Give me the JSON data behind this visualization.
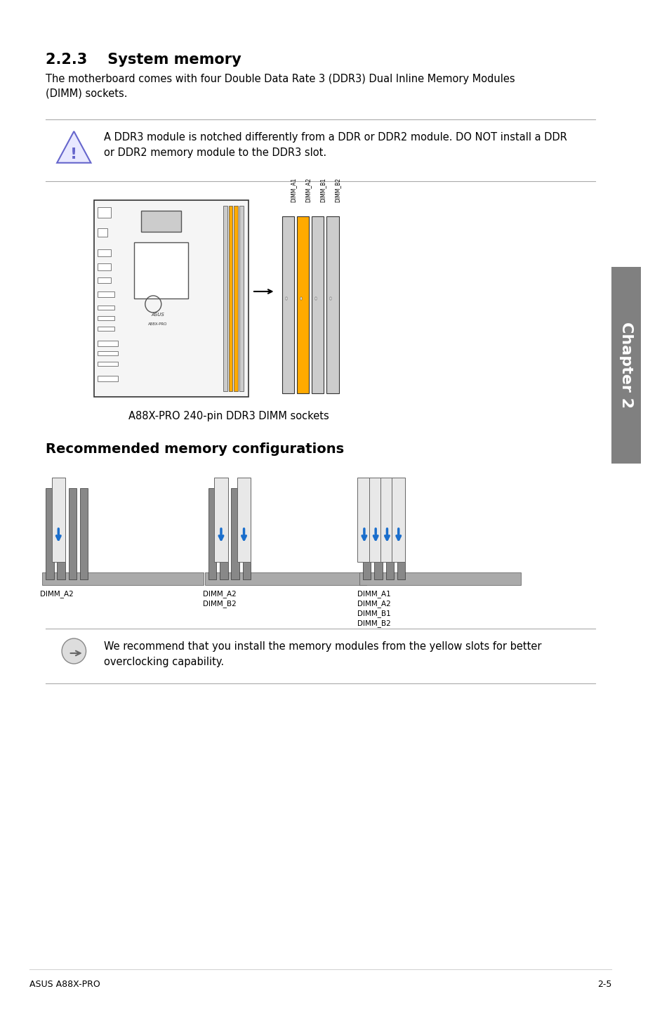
{
  "title": "2.2.3    System memory",
  "body_text": "The motherboard comes with four Double Data Rate 3 (DDR3) Dual Inline Memory Modules\n(DIMM) sockets.",
  "warning_text": "A DDR3 module is notched differently from a DDR or DDR2 module. DO NOT install a DDR\nor DDR2 memory module to the DDR3 slot.",
  "mobo_caption": "A88X-PRO 240-pin DDR3 DIMM sockets",
  "section_header": "Recommended memory configurations",
  "note_text": "We recommend that you install the memory modules from the yellow slots for better\noverclocking capability.",
  "footer_left": "ASUS A88X-PRO",
  "footer_right": "2-5",
  "chapter_label": "Chapter 2",
  "bg_color": "#ffffff",
  "text_color": "#000000",
  "gray_color": "#808080",
  "light_gray": "#d3d3d3",
  "blue_color": "#4169e1",
  "chapter_bg": "#808080",
  "warning_icon_color": "#6666cc",
  "note_icon_color": "#888888",
  "line_color": "#aaaaaa",
  "yellow_color": "#ffa500",
  "dark_color": "#222222"
}
